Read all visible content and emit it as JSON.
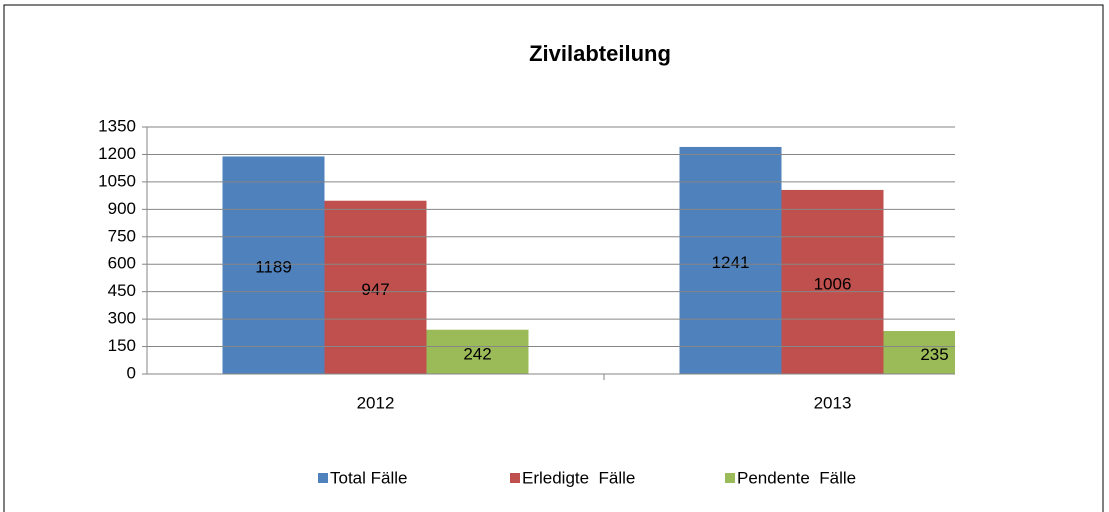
{
  "chart_data": {
    "type": "bar",
    "title": "Zivilabteilung",
    "categories": [
      "2012",
      "2013"
    ],
    "series": [
      {
        "name": "Total Fälle",
        "color": "#4f81bd",
        "values": [
          1189,
          1241
        ]
      },
      {
        "name": "Erledigte  Fälle",
        "color": "#c0504d",
        "values": [
          947,
          1006
        ]
      },
      {
        "name": "Pendente  Fälle",
        "color": "#9bbb59",
        "values": [
          242,
          235
        ]
      }
    ],
    "ylim": [
      0,
      1350
    ],
    "yticks": [
      0,
      150,
      300,
      450,
      600,
      750,
      900,
      1050,
      1200,
      1350
    ],
    "grid": true,
    "legend": "bottom"
  }
}
